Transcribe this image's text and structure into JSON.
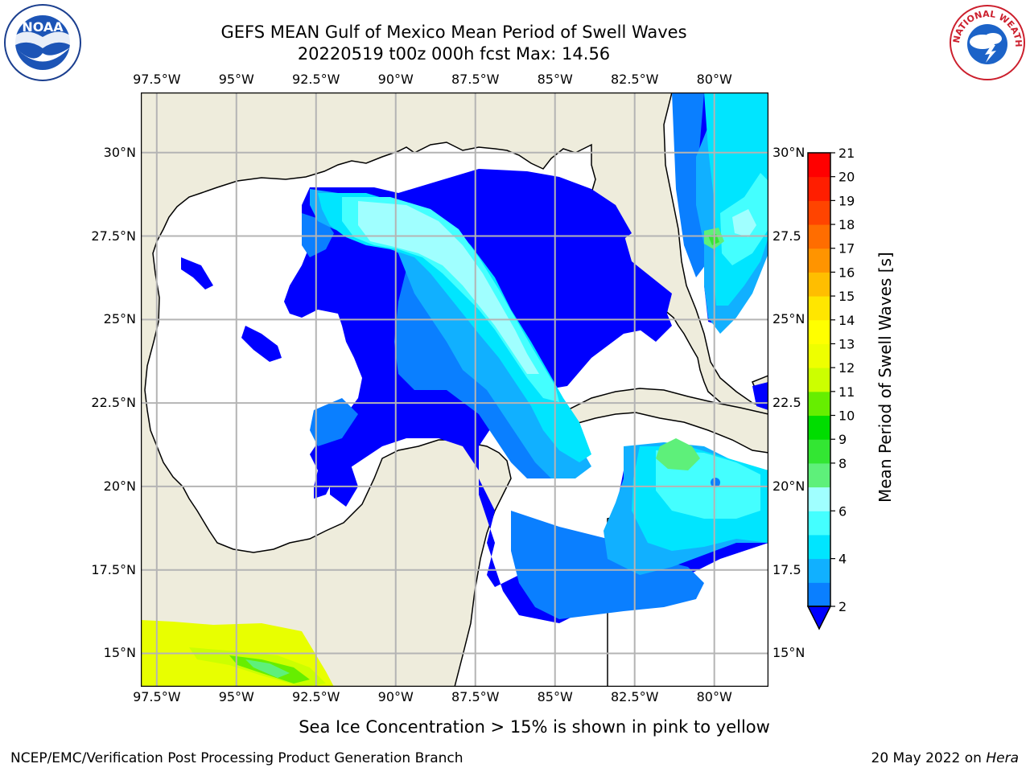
{
  "header": {
    "title_line1": "GEFS MEAN Gulf of Mexico Mean Period of Swell Waves",
    "title_line2": "20220519 t00z 000h fcst   Max: 14.56"
  },
  "logos": {
    "left": "NOAA",
    "left_ring_text": "NATIONAL OCEANIC AND ATMOSPHERIC ADMINISTRATION · U.S. DEPARTMENT OF COMMERCE",
    "right_ring_text": "NATIONAL WEATHER SERVICE"
  },
  "map": {
    "lon_ticks": [
      "97.5°W",
      "95°W",
      "92.5°W",
      "90°W",
      "87.5°W",
      "85°W",
      "82.5°W",
      "80°W"
    ],
    "lon_values": [
      -97.5,
      -95,
      -92.5,
      -90,
      -87.5,
      -85,
      -82.5,
      -80
    ],
    "lat_ticks_left": [
      "30°N",
      "27.5°N",
      "25°N",
      "22.5°N",
      "20°N",
      "17.5°N",
      "15°N"
    ],
    "lat_ticks_right": [
      "30°N",
      "27.5",
      "25°N",
      "22.5",
      "20°N",
      "17.5",
      "15°N"
    ],
    "lat_values": [
      30,
      27.5,
      25,
      22.5,
      20,
      17.5,
      15
    ],
    "extent": {
      "lon_min": -98,
      "lon_max": -78.3,
      "lat_min": 14,
      "lat_max": 31.8
    },
    "land_color": "#eeecdc",
    "grid_color": "#b4b4b4"
  },
  "colorbar": {
    "label": "Mean Period of Swell Waves [s]",
    "levels": [
      2,
      3,
      4,
      5,
      6,
      7,
      8,
      9,
      10,
      11,
      12,
      13,
      14,
      15,
      16,
      17,
      18,
      19,
      20,
      21
    ],
    "tick_labels": [
      "21",
      "20",
      "19",
      "18",
      "17",
      "16",
      "15",
      "14",
      "13",
      "12",
      "11",
      "10",
      "9",
      "8",
      "6",
      "4",
      "2"
    ],
    "tick_values": [
      21,
      20,
      19,
      18,
      17,
      16,
      15,
      14,
      13,
      12,
      11,
      10,
      9,
      8,
      6,
      4,
      2
    ],
    "colors": [
      "#0a7fff",
      "#11b0ff",
      "#00e5ff",
      "#44ffff",
      "#a0ffff",
      "#5ef07a",
      "#33e633",
      "#00dd00",
      "#66ee00",
      "#ccff00",
      "#eeff00",
      "#ffff00",
      "#ffe600",
      "#ffbe00",
      "#ff9400",
      "#ff6d00",
      "#ff4400",
      "#ff1e00",
      "#ff0000"
    ],
    "under_color": "#0000ff"
  },
  "footer": {
    "note": "Sea Ice Concentration > 15% is shown in pink to yellow",
    "credit": "NCEP/EMC/Verification Post Processing Product Generation Branch",
    "date": "20 May 2022 on ",
    "machine": "Hera"
  }
}
